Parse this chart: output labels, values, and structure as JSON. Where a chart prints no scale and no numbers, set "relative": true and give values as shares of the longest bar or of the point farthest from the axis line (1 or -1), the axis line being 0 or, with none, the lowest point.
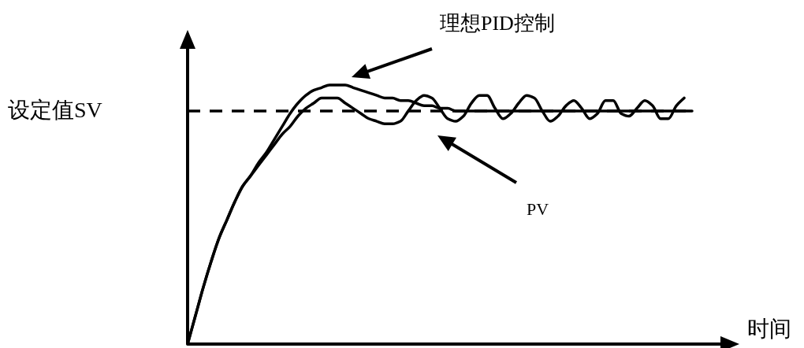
{
  "chart_data": {
    "type": "line",
    "relative": true,
    "xlabel": "时间",
    "categories": [
      null,
      null,
      null,
      null,
      null,
      null,
      null,
      null,
      null,
      null,
      null,
      null,
      null,
      null,
      null,
      null,
      null,
      null,
      null,
      null,
      null,
      null,
      null,
      null,
      null,
      null,
      null,
      null,
      null,
      null,
      null,
      null,
      null,
      null,
      null,
      null,
      null,
      null,
      null,
      null,
      null,
      null,
      null,
      null,
      null,
      null,
      null,
      null,
      null,
      null,
      null,
      null,
      null,
      null,
      null,
      null,
      null,
      null,
      null,
      null,
      null,
      null,
      null,
      null,
      null
    ],
    "series": [
      {
        "color": "#000000",
        "values": [
          0,
          0.11,
          0.22,
          0.32,
          0.41,
          0.48,
          0.55,
          0.61,
          0.65,
          0.7,
          0.74,
          0.79,
          0.84,
          0.89,
          0.93,
          0.96,
          0.98,
          0.99,
          1.0,
          1.0,
          1.0,
          0.99,
          0.98,
          0.97,
          0.96,
          0.95,
          0.95,
          0.94,
          0.94,
          0.93,
          0.92,
          0.92,
          0.91,
          0.91,
          0.9,
          0.9,
          0.9,
          0.9,
          0.9,
          0.9,
          0.9,
          0.9,
          0.9,
          0.9,
          0.9,
          0.9,
          0.9,
          0.9,
          0.9,
          0.9,
          0.9,
          0.9,
          0.9,
          0.9,
          0.9,
          0.9,
          0.9,
          0.9,
          0.9,
          0.9,
          0.9,
          0.9,
          0.9,
          0.9,
          0.9
        ]
      },
      {
        "color": "#000000",
        "values": [
          0,
          0.11,
          0.22,
          0.32,
          0.41,
          0.48,
          0.55,
          0.61,
          0.65,
          0.69,
          0.73,
          0.77,
          0.81,
          0.84,
          0.88,
          0.91,
          0.93,
          0.95,
          0.95,
          0.95,
          0.93,
          0.91,
          0.89,
          0.87,
          0.86,
          0.85,
          0.85,
          0.86,
          0.9,
          0.94,
          0.96,
          0.95,
          0.91,
          0.87,
          0.86,
          0.88,
          0.93,
          0.96,
          0.96,
          0.91,
          0.87,
          0.89,
          0.93,
          0.96,
          0.95,
          0.9,
          0.86,
          0.88,
          0.92,
          0.94,
          0.91,
          0.87,
          0.89,
          0.94,
          0.94,
          0.89,
          0.88,
          0.91,
          0.94,
          0.92,
          0.87,
          0.87,
          0.92,
          0.95,
          null
        ]
      }
    ],
    "ref_lines": [
      {
        "axis": "y",
        "value": 0.9,
        "label": "设定值SV",
        "line_style": "dashed",
        "color": "#000000"
      }
    ],
    "annotations": [
      "理想PID控制",
      "PV"
    ],
    "line_style": "solid"
  }
}
